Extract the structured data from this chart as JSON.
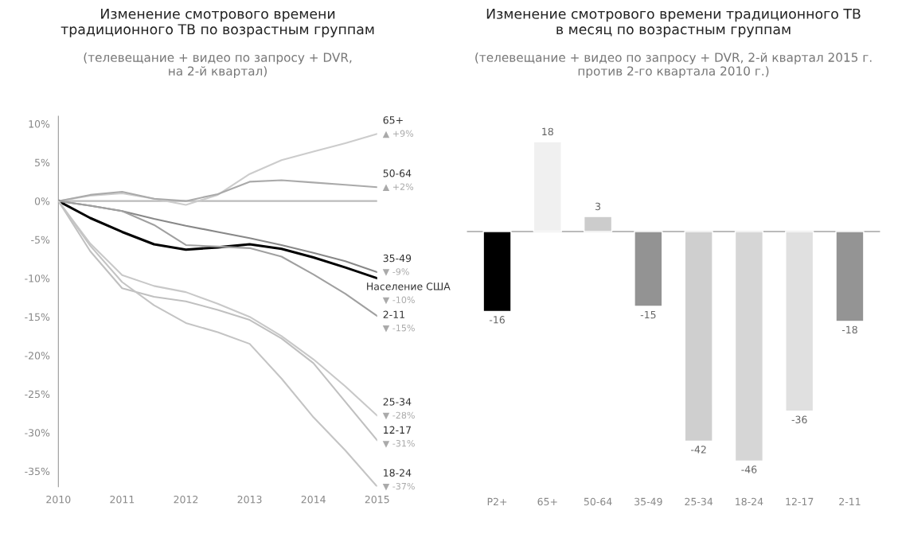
{
  "chart_data": [
    {
      "type": "line",
      "title": "Изменение смотрового времени\nтрадиционного ТВ по возрастным группам",
      "subtitle": "(телевещание + видео по запросу + DVR,\nна 2-й квартал)",
      "x": [
        2010,
        2010.5,
        2011,
        2011.5,
        2012,
        2012.5,
        2013,
        2013.5,
        2014,
        2014.5,
        2015
      ],
      "series": [
        {
          "name": "65+",
          "color": "#cccccc",
          "values": [
            0,
            0.7,
            1.0,
            0.3,
            -0.5,
            0.8,
            3.5,
            5.3,
            6.4,
            7.5,
            8.7
          ]
        },
        {
          "name": "50-64",
          "color": "#aaaaaa",
          "values": [
            0,
            0.8,
            1.2,
            0.3,
            0,
            0.9,
            2.5,
            2.7,
            2.4,
            2.1,
            1.8
          ]
        },
        {
          "name": "35-49",
          "color": "#888888",
          "values": [
            0,
            -0.6,
            -1.3,
            -2.3,
            -3.2,
            -4.0,
            -4.8,
            -5.7,
            -6.7,
            -7.8,
            -9.2
          ]
        },
        {
          "name": "Население США",
          "color": "#000000",
          "values": [
            0,
            -2.2,
            -4.0,
            -5.6,
            -6.3,
            -6.0,
            -5.6,
            -6.2,
            -7.3,
            -8.6,
            -10.0
          ]
        },
        {
          "name": "2-11",
          "color": "#a0a0a0",
          "values": [
            0,
            -0.6,
            -1.3,
            -3.1,
            -5.7,
            -5.9,
            -6.1,
            -7.2,
            -9.5,
            -12.0,
            -14.9
          ]
        },
        {
          "name": "25-34",
          "color": "#c8c8c8",
          "values": [
            0,
            -5.5,
            -9.6,
            -11.0,
            -11.8,
            -13.3,
            -15.0,
            -17.5,
            -20.5,
            -24.0,
            -27.8
          ]
        },
        {
          "name": "12-17",
          "color": "#c0c0c0",
          "values": [
            0,
            -6.5,
            -11.3,
            -12.4,
            -13.0,
            -14.1,
            -15.4,
            -17.8,
            -21.0,
            -26.0,
            -31.0
          ]
        },
        {
          "name": "18-24",
          "color": "#c4c4c4",
          "values": [
            0,
            -5.8,
            -10.5,
            -13.5,
            -15.8,
            -17.0,
            -18.5,
            -23.0,
            -28.0,
            -32.3,
            -37.0
          ]
        }
      ],
      "annotations": [
        "▲ +9%",
        "▲ +2%",
        "▼ -9%",
        "▼ -10%",
        "▼ -15%",
        "▼ -28%",
        "▼ -31%",
        "▼ -37%"
      ],
      "xlim": [
        2010,
        2015
      ],
      "xticks": [
        2010,
        2011,
        2012,
        2013,
        2014,
        2015
      ],
      "ylim": [
        -37,
        11
      ],
      "yticks": [
        {
          "value": 10,
          "label": "10%"
        },
        {
          "value": 5,
          "label": "5%"
        },
        {
          "value": 0,
          "label": "0%"
        },
        {
          "value": -5,
          "label": "-5%"
        },
        {
          "value": -10,
          "label": "-10%"
        },
        {
          "value": -15,
          "label": "-15%"
        },
        {
          "value": -20,
          "label": "-20%"
        },
        {
          "value": -25,
          "label": "-25%"
        },
        {
          "value": -30,
          "label": "-30%"
        },
        {
          "value": -35,
          "label": "-35%"
        }
      ],
      "ref_lines": [
        {
          "axis": "y",
          "value": 0,
          "color": "#bbbbbb"
        }
      ],
      "grid": false,
      "legend": false
    },
    {
      "type": "bar",
      "title": "Изменение смотрового времени традиционного ТВ\nв месяц по возрастным группам",
      "subtitle": "(телевещание + видео по запросу + DVR, 2-й квартал 2015 г.\nпротив 2-го квартала 2010 г.)",
      "categories": [
        "P2+",
        "65+",
        "50-64",
        "35-49",
        "25-34",
        "18-24",
        "12-17",
        "2-11"
      ],
      "values": [
        -16,
        18,
        3,
        -15,
        -42,
        -46,
        -36,
        -18
      ],
      "colors": [
        "#000000",
        "#f0f0f0",
        "#cccccc",
        "#939393",
        "#cfcfcf",
        "#d6d6d6",
        "#e0e0e0",
        "#949494"
      ],
      "data_labels": true,
      "ref_lines": [
        {
          "axis": "y",
          "value": 0,
          "color": "#bbbbbb"
        }
      ],
      "grid": false,
      "legend": false
    }
  ]
}
